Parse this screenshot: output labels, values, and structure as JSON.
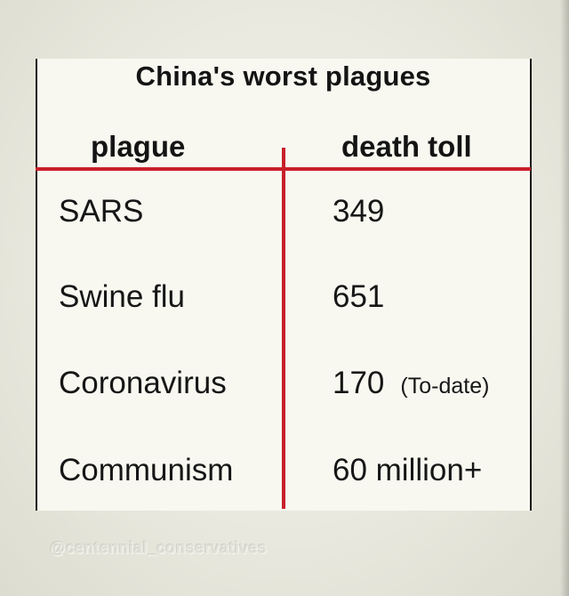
{
  "title": "China's worst plagues",
  "columns": {
    "plague": "plague",
    "death_toll": "death toll"
  },
  "rows": [
    {
      "plague": "SARS",
      "death_toll": "349",
      "note": ""
    },
    {
      "plague": "Swine flu",
      "death_toll": "651",
      "note": ""
    },
    {
      "plague": "Coronavirus",
      "death_toll": "170",
      "note": "(To-date)"
    },
    {
      "plague": "Communism",
      "death_toll": "60 million+",
      "note": ""
    }
  ],
  "watermark": "@centennial_conservatives",
  "colors": {
    "rule": "#c8202a",
    "text": "#141414",
    "card": "#f8f8f1"
  }
}
